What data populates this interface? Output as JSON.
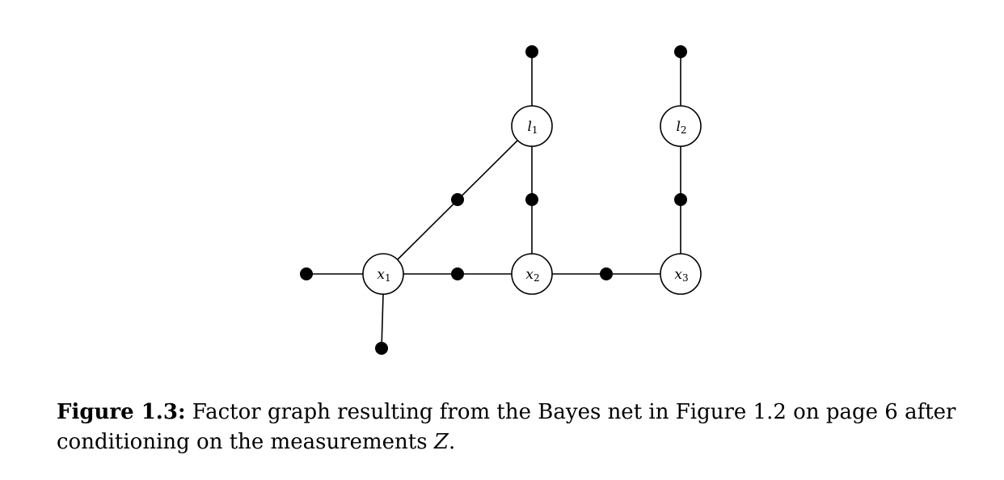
{
  "caption": {
    "label": "Figure 1.3:",
    "text_before": " Factor graph resulting from the Bayes net in Figure 1.2 on page 6 after conditioning on the measurements ",
    "math_symbol": "Z",
    "text_after": "."
  },
  "graph": {
    "variables": [
      {
        "id": "x1",
        "base": "x",
        "sub": "1"
      },
      {
        "id": "x2",
        "base": "x",
        "sub": "2"
      },
      {
        "id": "x3",
        "base": "x",
        "sub": "3"
      },
      {
        "id": "l1",
        "base": "l",
        "sub": "1"
      },
      {
        "id": "l2",
        "base": "l",
        "sub": "2"
      }
    ],
    "factors": [
      {
        "id": "f-x1-prior-left",
        "connects": [
          "x1"
        ]
      },
      {
        "id": "f-x1-prior-below",
        "connects": [
          "x1"
        ]
      },
      {
        "id": "f-x1-x2",
        "connects": [
          "x1",
          "x2"
        ]
      },
      {
        "id": "f-x2-x3",
        "connects": [
          "x2",
          "x3"
        ]
      },
      {
        "id": "f-x1-l1",
        "connects": [
          "x1",
          "l1"
        ]
      },
      {
        "id": "f-x2-l1",
        "connects": [
          "x2",
          "l1"
        ]
      },
      {
        "id": "f-x3-l2",
        "connects": [
          "x3",
          "l2"
        ]
      },
      {
        "id": "f-l1-prior",
        "connects": [
          "l1"
        ]
      },
      {
        "id": "f-l2-prior",
        "connects": [
          "l2"
        ]
      }
    ]
  }
}
